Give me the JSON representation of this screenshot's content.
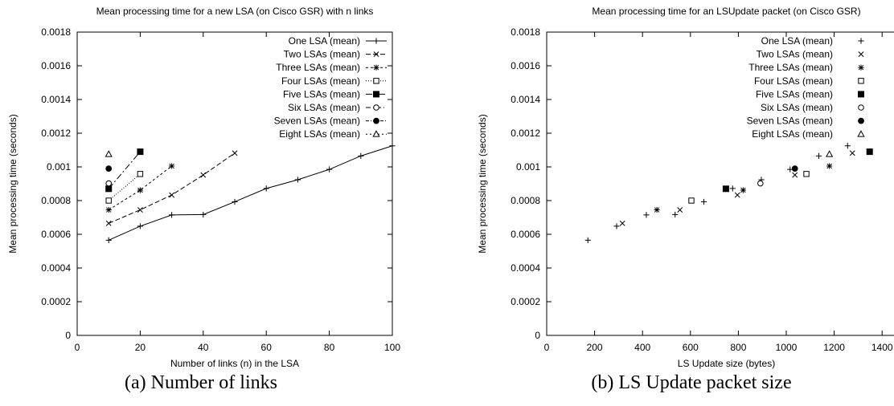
{
  "captions": {
    "a": "(a) Number of links",
    "b": "(b) LS Update packet size"
  },
  "chart_data": [
    {
      "type": "line",
      "title": "Mean processing time for a new LSA (on Cisco GSR) with n links",
      "xlabel": "Number of links (n) in the LSA",
      "ylabel": "Mean processing time (seconds)",
      "xlim": [
        0,
        100
      ],
      "ylim": [
        0,
        0.0018
      ],
      "xticks": [
        "0",
        "20",
        "40",
        "60",
        "80",
        "100"
      ],
      "yticks": [
        "0",
        "0.0002",
        "0.0004",
        "0.0006",
        "0.0008",
        "0.001",
        "0.0012",
        "0.0014",
        "0.0016",
        "0.0018"
      ],
      "grid": false,
      "legend": "top-right",
      "series": [
        {
          "name": "One LSA (mean)",
          "marker": "plus",
          "dash": "",
          "x": [
            10,
            20,
            30,
            40,
            50,
            60,
            70,
            80,
            90,
            100
          ],
          "y": [
            0.000565,
            0.000648,
            0.000715,
            0.000717,
            0.000793,
            0.000872,
            0.000924,
            0.000985,
            0.001065,
            0.001125
          ]
        },
        {
          "name": "Two LSAs (mean)",
          "marker": "cross",
          "dash": "6,3",
          "x": [
            10,
            20,
            30,
            40,
            50
          ],
          "y": [
            0.000665,
            0.000745,
            0.000833,
            0.000952,
            0.001082
          ]
        },
        {
          "name": "Three LSAs (mean)",
          "marker": "star",
          "dash": "3,3",
          "x": [
            10,
            20,
            30
          ],
          "y": [
            0.000745,
            0.000862,
            0.001005
          ]
        },
        {
          "name": "Four LSAs (mean)",
          "marker": "square-open",
          "dash": "1,2",
          "x": [
            10,
            20
          ],
          "y": [
            0.0008,
            0.000958
          ]
        },
        {
          "name": "Five LSAs (mean)",
          "marker": "square-filled",
          "dash": "8,3,2,3",
          "x": [
            10,
            20
          ],
          "y": [
            0.00087,
            0.00109
          ]
        },
        {
          "name": "Six LSAs (mean)",
          "marker": "circle-open",
          "dash": "6,3,1,3",
          "x": [
            10
          ],
          "y": [
            0.000902
          ]
        },
        {
          "name": "Seven LSAs (mean)",
          "marker": "circle-filled",
          "dash": "4,2,1,2",
          "x": [
            10
          ],
          "y": [
            0.00099
          ]
        },
        {
          "name": "Eight LSAs (mean)",
          "marker": "triangle-open",
          "dash": "2,3",
          "x": [
            10
          ],
          "y": [
            0.001075
          ]
        }
      ]
    },
    {
      "type": "scatter",
      "title": "Mean processing time for an LSUpdate packet (on Cisco GSR)",
      "xlabel": "LS Update size (bytes)",
      "ylabel": "Mean processing time (seconds)",
      "xlim": [
        0,
        1500
      ],
      "ylim": [
        0,
        0.0018
      ],
      "xticks": [
        "0",
        "200",
        "400",
        "600",
        "800",
        "1000",
        "1200",
        "1400"
      ],
      "yticks": [
        "0",
        "0.0002",
        "0.0004",
        "0.0006",
        "0.0008",
        "0.001",
        "0.0012",
        "0.0014",
        "0.0016",
        "0.0018"
      ],
      "grid": false,
      "legend": "top-right",
      "series": [
        {
          "name": "One LSA (mean)",
          "marker": "plus",
          "x": [
            172,
            292,
            416,
            536,
            656,
            776,
            896,
            1016,
            1136,
            1256
          ],
          "y": [
            0.000565,
            0.000648,
            0.000715,
            0.000717,
            0.000793,
            0.000872,
            0.000924,
            0.000985,
            0.001065,
            0.001125
          ]
        },
        {
          "name": "Two LSAs (mean)",
          "marker": "cross",
          "x": [
            316,
            556,
            796,
            1036,
            1276
          ],
          "y": [
            0.000665,
            0.000745,
            0.000833,
            0.000952,
            0.001082
          ]
        },
        {
          "name": "Three LSAs (mean)",
          "marker": "star",
          "x": [
            460,
            820,
            1180
          ],
          "y": [
            0.000745,
            0.000862,
            0.001005
          ]
        },
        {
          "name": "Four LSAs (mean)",
          "marker": "square-open",
          "x": [
            604,
            1084
          ],
          "y": [
            0.0008,
            0.000958
          ]
        },
        {
          "name": "Five LSAs (mean)",
          "marker": "square-filled",
          "x": [
            748,
            1348
          ],
          "y": [
            0.00087,
            0.00109
          ]
        },
        {
          "name": "Six LSAs (mean)",
          "marker": "circle-open",
          "x": [
            892
          ],
          "y": [
            0.000902
          ]
        },
        {
          "name": "Seven LSAs (mean)",
          "marker": "circle-filled",
          "x": [
            1036
          ],
          "y": [
            0.00099
          ]
        },
        {
          "name": "Eight LSAs (mean)",
          "marker": "triangle-open",
          "x": [
            1180
          ],
          "y": [
            0.001075
          ]
        }
      ]
    }
  ]
}
